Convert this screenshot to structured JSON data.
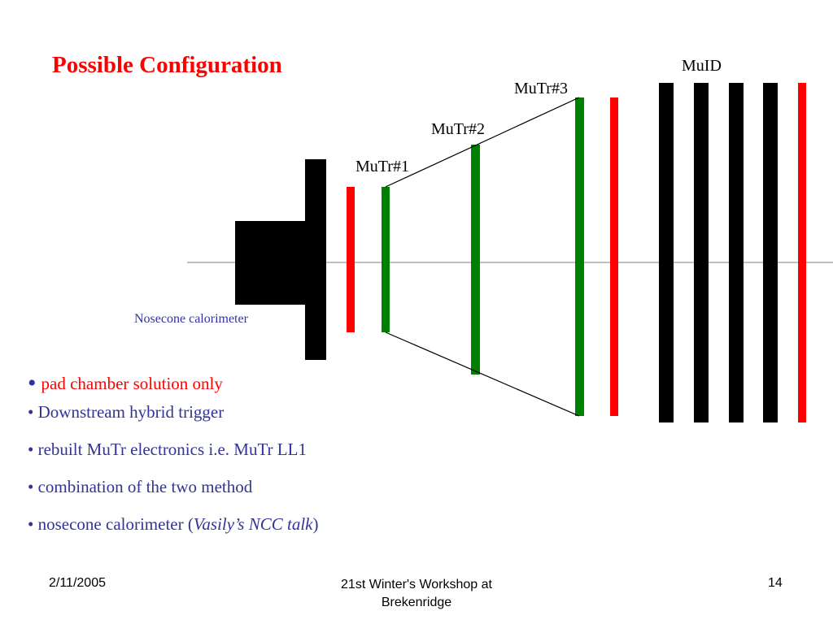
{
  "slide": {
    "title": "Possible Configuration",
    "diagram": {
      "labels": {
        "muid": "MuID",
        "mutr3": "MuTr#3",
        "mutr2": "MuTr#2",
        "mutr1": "MuTr#1",
        "nosecone": "Nosecone calorimeter"
      },
      "colors": {
        "absorber": "#000000",
        "ncc_plane": "#ff0000",
        "mutr_station": "#008000",
        "muid_plane": "#000000",
        "beam_axis": "#999999"
      }
    },
    "bullets": {
      "b1": "pad chamber solution only",
      "b2": "Downstream hybrid trigger",
      "b3": "rebuilt MuTr electronics i.e. MuTr LL1",
      "b4": "combination of the two method",
      "b5_prefix": "nosecone calorimeter (",
      "b5_italic": "Vasily’s NCC talk",
      "b5_suffix": ")"
    },
    "footer": {
      "date": "2/11/2005",
      "event_line1": "21st Winter's Workshop at",
      "event_line2": "Brekenridge",
      "page": "14"
    }
  }
}
